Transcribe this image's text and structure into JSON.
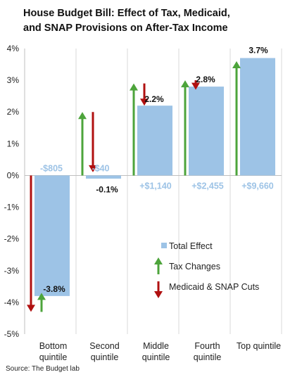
{
  "chart_data": {
    "type": "bar",
    "title_lines": [
      "House Budget Bill: Effect of Tax, Medicaid,",
      "and SNAP Provisions on After-Tax Income"
    ],
    "categories": [
      [
        "Bottom",
        "quintile"
      ],
      [
        "Second",
        "quintile"
      ],
      [
        "Middle",
        "quintile"
      ],
      [
        "Fourth",
        "quintile"
      ],
      [
        "Top quintile"
      ]
    ],
    "series": [
      {
        "name": "Total Effect",
        "values": [
          -3.8,
          -0.1,
          2.2,
          2.8,
          3.7
        ]
      },
      {
        "name": "Tax Changes",
        "values": [
          -0.6,
          2.0,
          2.9,
          3.0,
          3.6
        ]
      },
      {
        "name": "Medicaid & SNAP Cuts",
        "values": [
          -4.3,
          -1.9,
          -0.7,
          -0.3,
          0
        ]
      }
    ],
    "bar_labels": [
      "-3.8%",
      "-0.1%",
      "2.2%",
      "2.8%",
      "3.7%"
    ],
    "dollar_labels": [
      "-$805",
      "-$40",
      "+$1,140",
      "+$2,455",
      "+$9,660"
    ],
    "y_ticks": [
      "-5%",
      "-4%",
      "-3%",
      "-2%",
      "-1%",
      "0%",
      "1%",
      "2%",
      "3%",
      "4%"
    ],
    "ylim": [
      -5,
      4
    ],
    "grid": "vertical",
    "legend_position": "center-right",
    "colors": {
      "total": "#9dc3e6",
      "tax": "#4da43b",
      "cuts": "#b01010"
    },
    "source": "Source: The Budget lab"
  }
}
